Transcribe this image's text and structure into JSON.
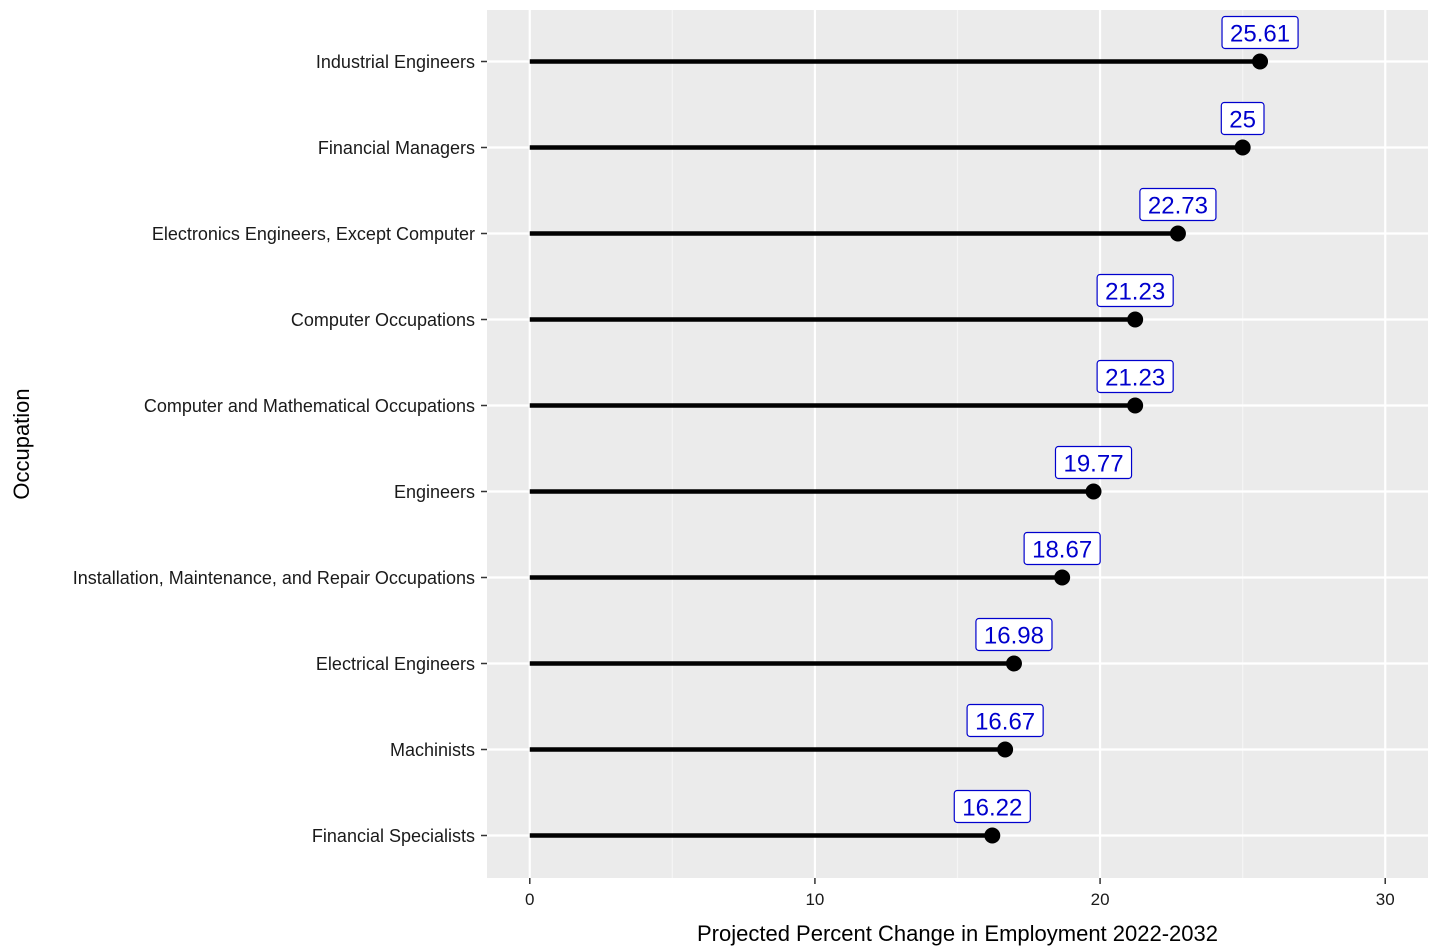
{
  "chart_data": {
    "type": "lollipop",
    "xlabel": "Projected Percent Change in Employment 2022-2032",
    "ylabel": "Occupation",
    "xlim": [
      -1.5,
      31.5
    ],
    "xticks": [
      0,
      10,
      20,
      30
    ],
    "xtick_labels": [
      "0",
      "10",
      "20",
      "30"
    ],
    "grid": true,
    "legend": "none",
    "categories": [
      "Industrial Engineers",
      "Financial Managers",
      "Electronics Engineers, Except Computer",
      "Computer Occupations",
      "Computer and Mathematical Occupations",
      "Engineers",
      "Installation, Maintenance, and Repair Occupations",
      "Electrical Engineers",
      "Machinists",
      "Financial Specialists"
    ],
    "values": [
      25.61,
      25,
      22.73,
      21.23,
      21.23,
      19.77,
      18.67,
      16.98,
      16.67,
      16.22
    ],
    "data_labels": [
      "25.61",
      "25",
      "22.73",
      "21.23",
      "21.23",
      "19.77",
      "18.67",
      "16.98",
      "16.67",
      "16.22"
    ],
    "colors": {
      "panel_background": "#EBEBEB",
      "grid_major": "#FFFFFF",
      "grid_minor": "#F5F5F5",
      "segment": "#000000",
      "point": "#000000",
      "label_text": "#0000CD",
      "label_border": "#0000CD",
      "label_fill": "#FFFFFF"
    }
  }
}
